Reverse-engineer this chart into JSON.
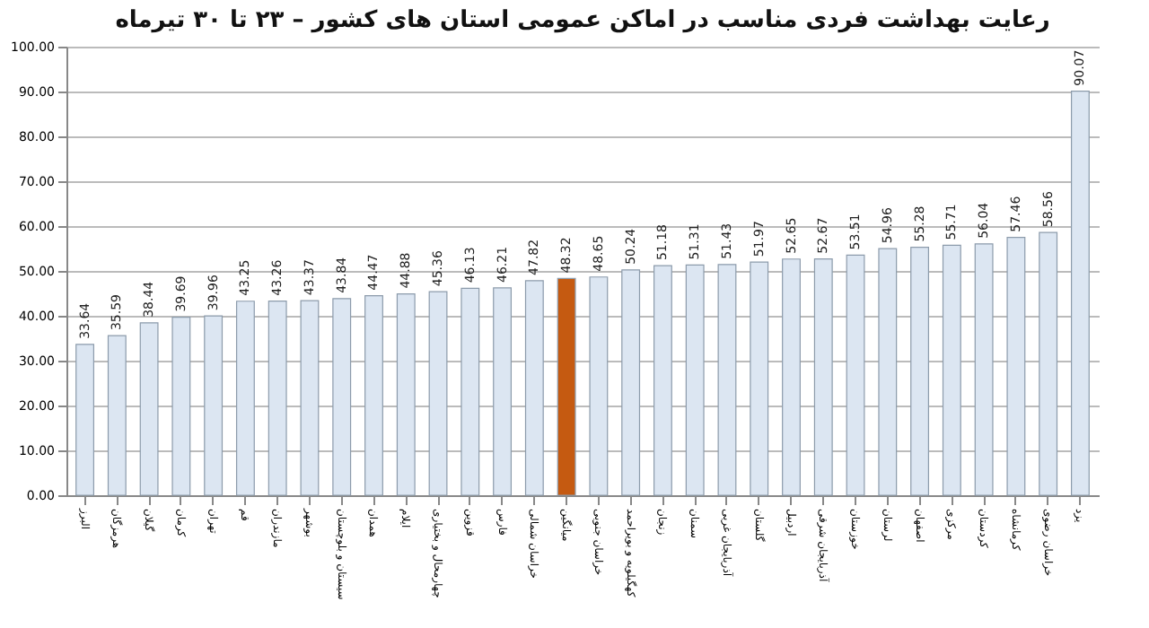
{
  "chart_data": {
    "type": "bar",
    "title": "رعایت بهداشت فردی مناسب در اماکن عمومی استان های کشور  – ۲۳ تا ۳۰ تیرماه",
    "categories": [
      "البرز",
      "هرمزگان",
      "گیلان",
      "کرمان",
      "تهران",
      "قم",
      "مازندران",
      "بوشهر",
      "سیستان و بلوچستان",
      "همدان",
      "ایلام",
      "چهارمحال و بختیاری",
      "قزوین",
      "فارس",
      "خراسان شمالی",
      "میانگین",
      "خراسان جنوبی",
      "کهگیلویه و بویراحمد",
      "زنجان",
      "سمنان",
      "آذربایجان غربی",
      "گلستان",
      "اردبیل",
      "آذربایجان شرقی",
      "خوزستان",
      "لرستان",
      "اصفهان",
      "مرکزی",
      "کردستان",
      "کرمانشاه",
      "خراسان رضوی",
      "یزد"
    ],
    "values": [
      33.64,
      35.59,
      38.44,
      39.69,
      39.96,
      43.25,
      43.26,
      43.37,
      43.84,
      44.47,
      44.88,
      45.36,
      46.13,
      46.21,
      47.82,
      48.32,
      48.65,
      50.24,
      51.18,
      51.31,
      51.43,
      51.97,
      52.65,
      52.67,
      53.51,
      54.96,
      55.28,
      55.71,
      56.04,
      57.46,
      58.56,
      90.07
    ],
    "colors": [
      "#dce6f2",
      "#dce6f2",
      "#dce6f2",
      "#dce6f2",
      "#dce6f2",
      "#dce6f2",
      "#dce6f2",
      "#dce6f2",
      "#dce6f2",
      "#dce6f2",
      "#dce6f2",
      "#dce6f2",
      "#dce6f2",
      "#dce6f2",
      "#dce6f2",
      "#c55a11",
      "#dce6f2",
      "#dce6f2",
      "#dce6f2",
      "#dce6f2",
      "#dce6f2",
      "#dce6f2",
      "#dce6f2",
      "#dce6f2",
      "#dce6f2",
      "#dce6f2",
      "#dce6f2",
      "#dce6f2",
      "#dce6f2",
      "#dce6f2",
      "#dce6f2",
      "#dce6f2"
    ],
    "ylim": [
      0,
      100
    ],
    "yticks": [
      {
        "value": 0,
        "label": "0.00"
      },
      {
        "value": 10,
        "label": "10.00"
      },
      {
        "value": 20,
        "label": "20.00"
      },
      {
        "value": 30,
        "label": "30.00"
      },
      {
        "value": 40,
        "label": "40.00"
      },
      {
        "value": 50,
        "label": "50.00"
      },
      {
        "value": 60,
        "label": "60.00"
      },
      {
        "value": 70,
        "label": "70.00"
      },
      {
        "value": 80,
        "label": "80.00"
      },
      {
        "value": 90,
        "label": "90.00"
      },
      {
        "value": 100,
        "label": "100.00"
      }
    ],
    "grid": "y",
    "data_labels": true
  }
}
